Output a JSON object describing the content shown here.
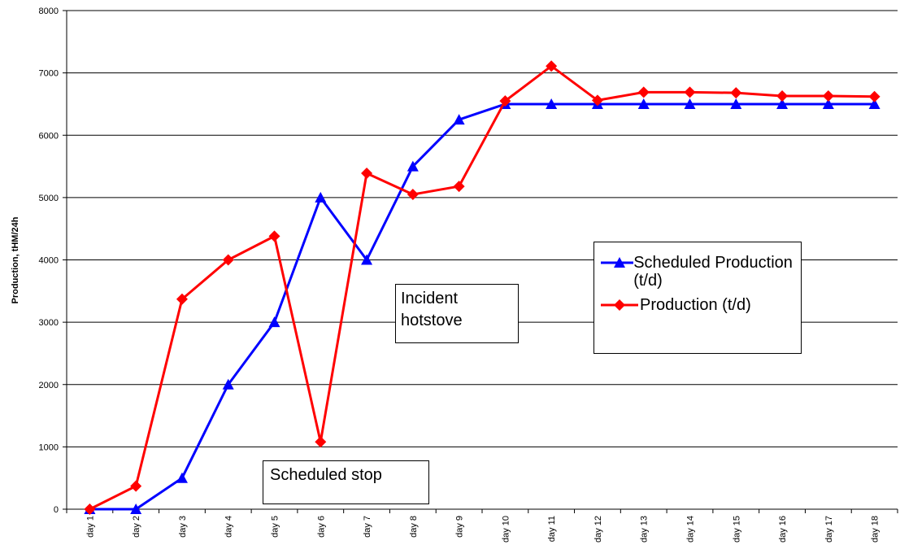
{
  "chart_data": {
    "type": "line",
    "ylabel": "Production, tHM/24h",
    "categories": [
      "day 1",
      "day 2",
      "day 3",
      "day 4",
      "day 5",
      "day 6",
      "day 7",
      "day 8",
      "day 9",
      "day 10",
      "day 11",
      "day 12",
      "day 13",
      "day 14",
      "day 15",
      "day 16",
      "day 17",
      "day 18"
    ],
    "series": [
      {
        "name": "Scheduled Production (t/d)",
        "color": "#0000ff",
        "marker": "triangle",
        "values": [
          0,
          0,
          500,
          2000,
          3000,
          5000,
          4000,
          5500,
          6250,
          6500,
          6500,
          6500,
          6500,
          6500,
          6500,
          6500,
          6500,
          6500
        ]
      },
      {
        "name": "Production (t/d)",
        "color": "#ff0000",
        "marker": "diamond",
        "values": [
          0,
          370,
          3370,
          4000,
          4380,
          1080,
          5390,
          5050,
          5180,
          6550,
          7110,
          6560,
          6690,
          6690,
          6680,
          6630,
          6630,
          6620
        ]
      }
    ],
    "ylim": [
      0,
      8000
    ],
    "yticks": [
      0,
      1000,
      2000,
      3000,
      4000,
      5000,
      6000,
      7000,
      8000
    ],
    "grid": true,
    "annotations": [
      {
        "text": "Incident hotstove"
      },
      {
        "text": "Scheduled stop"
      }
    ]
  }
}
